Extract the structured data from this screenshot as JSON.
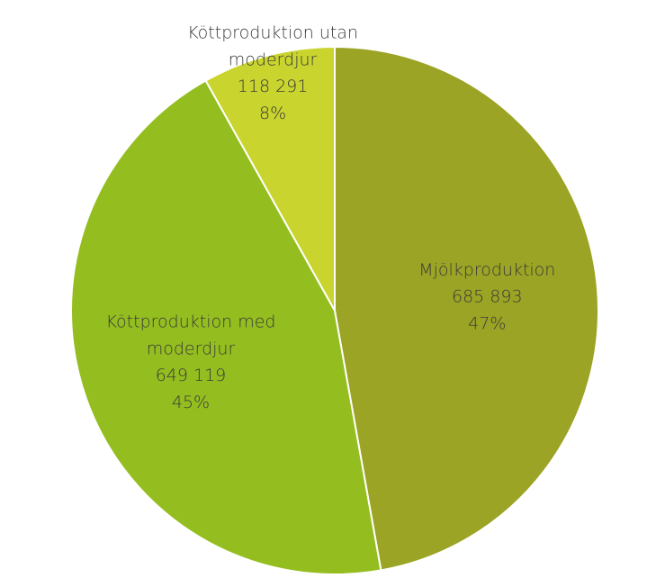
{
  "chart_data": {
    "type": "pie",
    "categories": [
      "Mjölkproduktion",
      "Köttproduktion med moderdjur",
      "Köttproduktion utan moderdjur"
    ],
    "values": [
      685893,
      649119,
      118291
    ],
    "value_labels": [
      "685 893",
      "649 119",
      "118 291"
    ],
    "percent_labels": [
      "47%",
      "45%",
      "8%"
    ],
    "colors": [
      "#9ba424",
      "#94be20",
      "#c9d42e"
    ]
  }
}
